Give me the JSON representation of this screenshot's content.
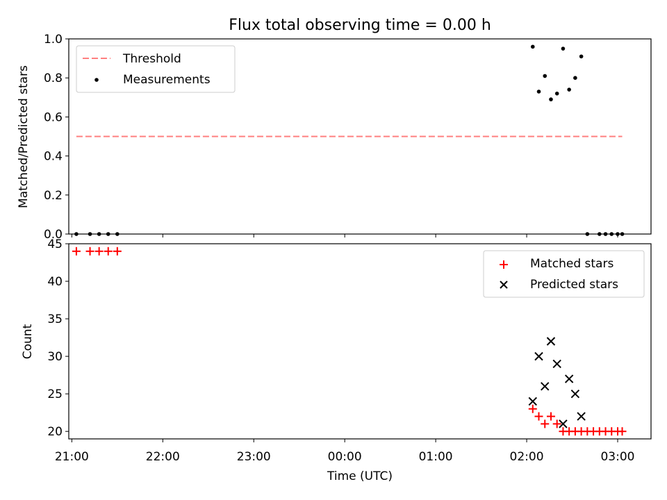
{
  "chart_data": [
    {
      "type": "scatter",
      "title": "Flux total observing time = 0.00 h",
      "xlabel": "",
      "ylabel": "Matched/Predicted stars",
      "ylim": [
        0,
        1.0
      ],
      "yticks": [
        "0.0",
        "0.2",
        "0.4",
        "0.6",
        "0.8",
        "1.0"
      ],
      "legend_position": "top-left",
      "threshold": {
        "name": "Threshold",
        "value": 0.5,
        "x_range": [
          "21:03",
          "03:03"
        ],
        "color": "#ff7f7f"
      },
      "series": [
        {
          "name": "Measurements",
          "color": "#000000",
          "x": [
            "21:03",
            "21:12",
            "21:18",
            "21:24",
            "21:30",
            "02:04",
            "02:08",
            "02:12",
            "02:16",
            "02:20",
            "02:24",
            "02:28",
            "02:32",
            "02:36",
            "02:40",
            "02:48",
            "02:52",
            "02:56",
            "03:00",
            "03:03"
          ],
          "y": [
            0,
            0,
            0,
            0,
            0,
            0.96,
            0.73,
            0.81,
            0.69,
            0.72,
            0.95,
            0.74,
            0.8,
            0.91,
            0,
            0,
            0,
            0,
            0,
            0
          ]
        }
      ]
    },
    {
      "type": "scatter",
      "title": "",
      "xlabel": "Time (UTC)",
      "ylabel": "Count",
      "ylim": [
        19,
        45
      ],
      "yticks": [
        "20",
        "25",
        "30",
        "35",
        "40",
        "45"
      ],
      "xticks": [
        "21:00",
        "22:00",
        "23:00",
        "00:00",
        "01:00",
        "02:00",
        "03:00"
      ],
      "xlim": [
        "20:58",
        "03:22"
      ],
      "legend_position": "top-right",
      "series": [
        {
          "name": "Matched stars",
          "marker": "+",
          "color": "#ff0000",
          "x": [
            "21:03",
            "21:12",
            "21:18",
            "21:24",
            "21:30",
            "02:04",
            "02:08",
            "02:12",
            "02:16",
            "02:20",
            "02:24",
            "02:28",
            "02:32",
            "02:36",
            "02:40",
            "02:44",
            "02:48",
            "02:52",
            "02:56",
            "03:00",
            "03:03"
          ],
          "y": [
            44,
            44,
            44,
            44,
            44,
            23,
            22,
            21,
            22,
            21,
            20,
            20,
            20,
            20,
            20,
            20,
            20,
            20,
            20,
            20,
            20
          ]
        },
        {
          "name": "Predicted stars",
          "marker": "x",
          "color": "#000000",
          "x": [
            "02:04",
            "02:08",
            "02:12",
            "02:16",
            "02:20",
            "02:24",
            "02:28",
            "02:32",
            "02:36"
          ],
          "y": [
            24,
            30,
            26,
            32,
            29,
            21,
            27,
            25,
            22
          ]
        }
      ]
    }
  ]
}
